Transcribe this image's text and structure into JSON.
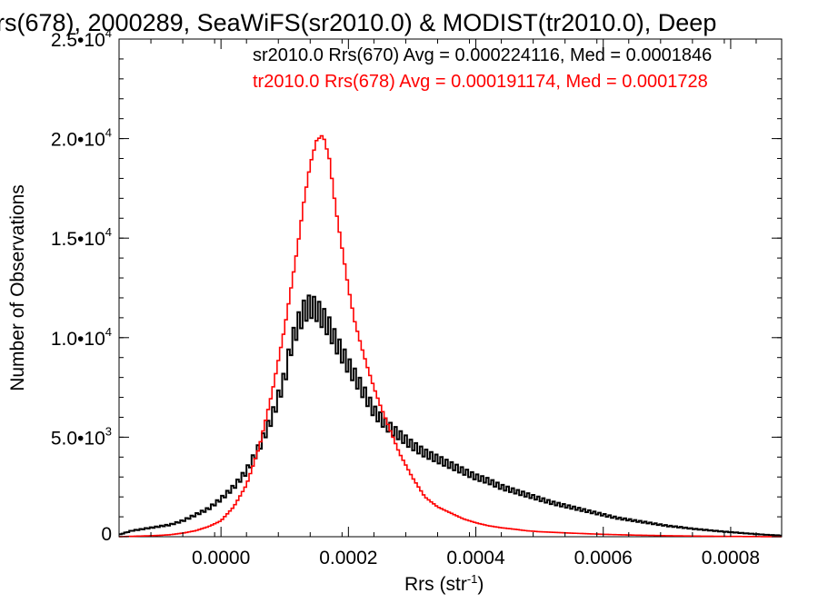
{
  "chart_data": {
    "type": "histogram",
    "title": "rs(678), 2000289, SeaWiFS(sr2010.0) & MODIST(tr2010.0), Deep",
    "xlabel": "Rrs (str",
    "xlabel_sup": "-1",
    "xlabel_close": ")",
    "ylabel": "Number of Observations",
    "xlim": [
      -0.00016,
      0.00088
    ],
    "ylim": [
      0,
      25000
    ],
    "x_ticks": [
      {
        "value": 0.0,
        "label": "0.0000"
      },
      {
        "value": 0.0002,
        "label": "0.0002"
      },
      {
        "value": 0.0004,
        "label": "0.0004"
      },
      {
        "value": 0.0006,
        "label": "0.0006"
      },
      {
        "value": 0.0008,
        "label": "0.0008"
      }
    ],
    "y_ticks": [
      {
        "value": 0,
        "mant": "0",
        "exp": ""
      },
      {
        "value": 5000,
        "mant": "5.0•10",
        "exp": "3"
      },
      {
        "value": 10000,
        "mant": "1.0•10",
        "exp": "4"
      },
      {
        "value": 15000,
        "mant": "1.5•10",
        "exp": "4"
      },
      {
        "value": 20000,
        "mant": "2.0•10",
        "exp": "4"
      },
      {
        "value": 25000,
        "mant": "2.5•10",
        "exp": "4"
      }
    ],
    "series": [
      {
        "name": "sr2010.0 Rrs(670) Avg = 0.000224116, Med = 0.0001846",
        "color": "#000000",
        "x": [
          -0.00016,
          -0.00014,
          -0.00012,
          -0.0001,
          -8e-05,
          -6e-05,
          -4e-05,
          -2e-05,
          0.0,
          2e-05,
          4e-05,
          6e-05,
          8e-05,
          0.0001,
          0.00011,
          0.00012,
          0.00013,
          0.00014,
          0.00015,
          0.00016,
          0.00017,
          0.00018,
          0.0002,
          0.00022,
          0.00024,
          0.00026,
          0.00028,
          0.0003,
          0.00032,
          0.00034,
          0.00036,
          0.00038,
          0.0004,
          0.00042,
          0.00044,
          0.00046,
          0.00048,
          0.0005,
          0.00052,
          0.00054,
          0.00056,
          0.00058,
          0.0006,
          0.00062,
          0.00064,
          0.00066,
          0.00068,
          0.0007,
          0.00072,
          0.00074,
          0.00076,
          0.00078,
          0.0008,
          0.00082,
          0.00084,
          0.00086,
          0.00088
        ],
        "y": [
          100,
          300,
          400,
          500,
          600,
          800,
          1100,
          1400,
          1900,
          2500,
          3300,
          4500,
          6000,
          8000,
          9600,
          10600,
          11300,
          11600,
          11400,
          11000,
          10500,
          9800,
          8600,
          7500,
          6300,
          5600,
          5100,
          4600,
          4200,
          3900,
          3600,
          3300,
          3000,
          2800,
          2500,
          2300,
          2100,
          1900,
          1700,
          1550,
          1400,
          1250,
          1100,
          950,
          850,
          750,
          650,
          550,
          480,
          400,
          340,
          280,
          230,
          180,
          130,
          90,
          60
        ]
      },
      {
        "name": "tr2010.0 Rrs(678) Avg = 0.000191174, Med = 0.0001728",
        "color": "#ff0000",
        "x": [
          -0.00016,
          -0.00014,
          -0.00012,
          -0.0001,
          -8e-05,
          -6e-05,
          -4e-05,
          -2e-05,
          0.0,
          2e-05,
          4e-05,
          6e-05,
          8e-05,
          0.0001,
          0.00011,
          0.00012,
          0.00013,
          0.00014,
          0.00015,
          0.00016,
          0.00017,
          0.00018,
          0.00019,
          0.0002,
          0.00021,
          0.00022,
          0.00023,
          0.00024,
          0.00025,
          0.00026,
          0.00028,
          0.0003,
          0.00032,
          0.00034,
          0.00036,
          0.00038,
          0.0004,
          0.00042,
          0.00044,
          0.00046,
          0.00048,
          0.0005,
          0.00055,
          0.0006,
          0.00065,
          0.0007,
          0.00075,
          0.0008,
          0.00085,
          0.00088
        ],
        "y": [
          0,
          20,
          40,
          60,
          100,
          180,
          300,
          500,
          800,
          1500,
          2600,
          4500,
          7200,
          10500,
          12500,
          14500,
          16800,
          18700,
          19900,
          20200,
          19000,
          16500,
          14500,
          12500,
          10800,
          9600,
          8500,
          7500,
          6600,
          5800,
          4200,
          3000,
          2000,
          1500,
          1200,
          900,
          700,
          550,
          450,
          380,
          300,
          250,
          180,
          120,
          80,
          50,
          30,
          15,
          5,
          0
        ]
      }
    ]
  }
}
